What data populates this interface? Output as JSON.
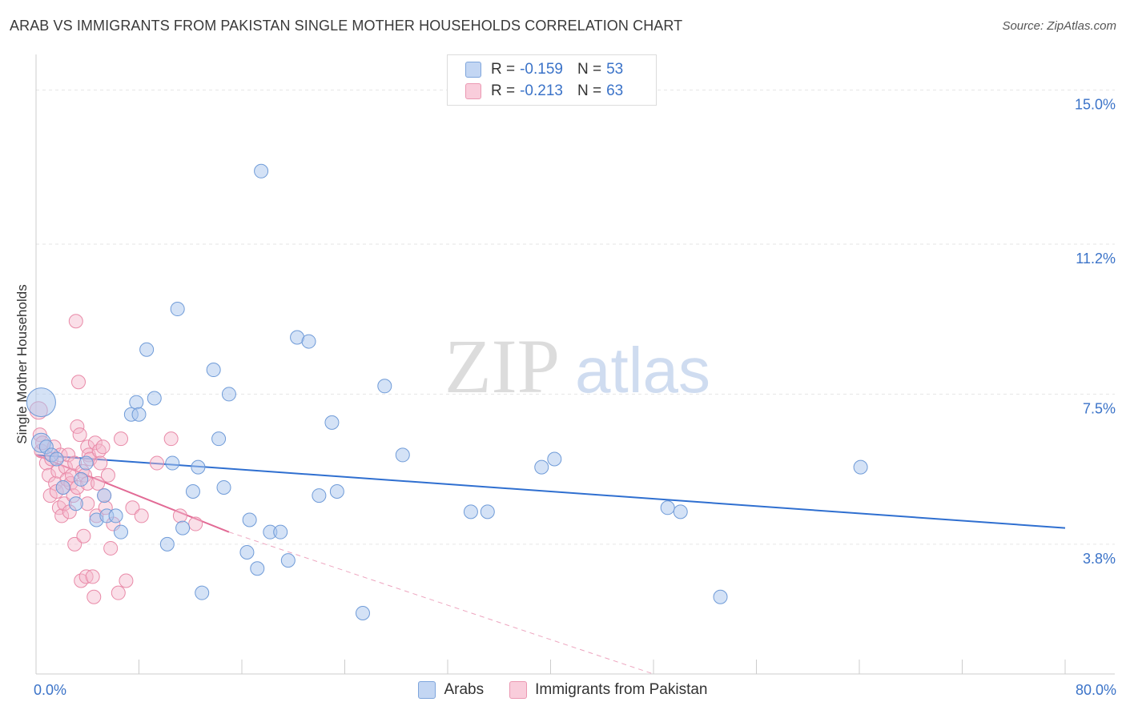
{
  "title": "ARAB VS IMMIGRANTS FROM PAKISTAN SINGLE MOTHER HOUSEHOLDS CORRELATION CHART",
  "source": "Source: ZipAtlas.com",
  "watermark": {
    "zip": "ZIP",
    "atlas": "atlas"
  },
  "legend": {
    "arabs": {
      "r_label": "R =",
      "r_value": "-0.159",
      "n_label": "N =",
      "n_value": "53"
    },
    "pakistan": {
      "r_label": "R =",
      "r_value": "-0.213",
      "n_label": "N =",
      "n_value": "63"
    }
  },
  "colors": {
    "arabs_fill": "#a9c5ee",
    "arabs_stroke": "#6f9bd8",
    "arabs_line": "#2f6fd0",
    "pakistan_fill": "#f5b9cc",
    "pakistan_stroke": "#e98aa8",
    "pakistan_line": "#e26a95",
    "tick_label": "#3b73c8",
    "grid": "#e6e6e6"
  },
  "chart_data": {
    "type": "scatter",
    "title": "ARAB VS IMMIGRANTS FROM PAKISTAN SINGLE MOTHER HOUSEHOLDS CORRELATION CHART",
    "xlabel": "",
    "ylabel": "Single Mother Households",
    "xlim": [
      0,
      80
    ],
    "ylim": [
      0.6,
      15.7
    ],
    "x_tick_labels": [
      "0.0%",
      "80.0%"
    ],
    "y_ticks": [
      3.8,
      7.5,
      11.2,
      15.0
    ],
    "y_tick_labels": [
      "3.8%",
      "7.5%",
      "11.2%",
      "15.0%"
    ],
    "grid": true,
    "legend_position": "top-center",
    "series": [
      {
        "name": "Arabs",
        "points": [
          [
            0.4,
            7.3
          ],
          [
            0.4,
            6.3
          ],
          [
            0.8,
            6.2
          ],
          [
            1.2,
            6.0
          ],
          [
            1.6,
            5.9
          ],
          [
            2.1,
            5.2
          ],
          [
            3.1,
            4.8
          ],
          [
            3.5,
            5.4
          ],
          [
            3.9,
            5.8
          ],
          [
            4.7,
            4.4
          ],
          [
            5.3,
            5.0
          ],
          [
            5.5,
            4.5
          ],
          [
            6.2,
            4.5
          ],
          [
            6.6,
            4.1
          ],
          [
            7.4,
            7.0
          ],
          [
            7.8,
            7.3
          ],
          [
            8.0,
            7.0
          ],
          [
            8.6,
            8.6
          ],
          [
            9.2,
            7.4
          ],
          [
            10.2,
            3.8
          ],
          [
            10.6,
            5.8
          ],
          [
            11.0,
            9.6
          ],
          [
            11.4,
            4.2
          ],
          [
            12.2,
            5.1
          ],
          [
            12.6,
            5.7
          ],
          [
            12.9,
            2.6
          ],
          [
            13.8,
            8.1
          ],
          [
            14.2,
            6.4
          ],
          [
            14.6,
            5.2
          ],
          [
            15.0,
            7.5
          ],
          [
            16.4,
            3.6
          ],
          [
            16.6,
            4.4
          ],
          [
            17.2,
            3.2
          ],
          [
            17.5,
            13.0
          ],
          [
            18.2,
            4.1
          ],
          [
            19.0,
            4.1
          ],
          [
            19.6,
            3.4
          ],
          [
            20.3,
            8.9
          ],
          [
            21.2,
            8.8
          ],
          [
            22.0,
            5.0
          ],
          [
            23.0,
            6.8
          ],
          [
            23.4,
            5.1
          ],
          [
            25.4,
            2.1
          ],
          [
            27.1,
            7.7
          ],
          [
            28.5,
            6.0
          ],
          [
            33.8,
            4.6
          ],
          [
            35.1,
            4.6
          ],
          [
            39.3,
            5.7
          ],
          [
            40.3,
            5.9
          ],
          [
            49.1,
            4.7
          ],
          [
            50.1,
            4.6
          ],
          [
            53.2,
            2.5
          ],
          [
            64.1,
            5.7
          ]
        ]
      },
      {
        "name": "Immigrants from Pakistan",
        "points": [
          [
            0.2,
            7.1
          ],
          [
            0.3,
            6.5
          ],
          [
            0.4,
            6.1
          ],
          [
            0.5,
            6.3
          ],
          [
            0.8,
            5.8
          ],
          [
            1.0,
            5.5
          ],
          [
            1.1,
            5.0
          ],
          [
            1.2,
            5.9
          ],
          [
            1.4,
            6.2
          ],
          [
            1.5,
            5.3
          ],
          [
            1.6,
            5.1
          ],
          [
            1.7,
            5.6
          ],
          [
            1.8,
            4.7
          ],
          [
            1.9,
            6.0
          ],
          [
            2.0,
            4.5
          ],
          [
            2.1,
            5.2
          ],
          [
            2.2,
            4.8
          ],
          [
            2.3,
            5.7
          ],
          [
            2.4,
            5.4
          ],
          [
            2.5,
            6.0
          ],
          [
            2.6,
            4.6
          ],
          [
            2.7,
            5.3
          ],
          [
            2.8,
            5.5
          ],
          [
            2.9,
            5.0
          ],
          [
            3.0,
            3.8
          ],
          [
            3.0,
            5.8
          ],
          [
            3.1,
            9.3
          ],
          [
            3.2,
            5.2
          ],
          [
            3.2,
            6.7
          ],
          [
            3.3,
            7.8
          ],
          [
            3.4,
            6.5
          ],
          [
            3.5,
            2.9
          ],
          [
            3.6,
            5.6
          ],
          [
            3.7,
            4.0
          ],
          [
            3.8,
            5.5
          ],
          [
            3.9,
            3.0
          ],
          [
            4.0,
            5.3
          ],
          [
            4.0,
            6.2
          ],
          [
            4.0,
            4.8
          ],
          [
            4.1,
            6.0
          ],
          [
            4.2,
            5.9
          ],
          [
            4.4,
            3.0
          ],
          [
            4.5,
            2.5
          ],
          [
            4.6,
            6.3
          ],
          [
            4.7,
            4.5
          ],
          [
            4.8,
            5.3
          ],
          [
            4.9,
            6.1
          ],
          [
            5.0,
            5.8
          ],
          [
            5.2,
            6.2
          ],
          [
            5.3,
            5.0
          ],
          [
            5.4,
            4.7
          ],
          [
            5.6,
            5.5
          ],
          [
            5.8,
            3.7
          ],
          [
            6.0,
            4.3
          ],
          [
            6.4,
            2.6
          ],
          [
            6.6,
            6.4
          ],
          [
            7.0,
            2.9
          ],
          [
            7.5,
            4.7
          ],
          [
            8.2,
            4.5
          ],
          [
            9.4,
            5.8
          ],
          [
            10.5,
            6.4
          ],
          [
            11.2,
            4.5
          ],
          [
            12.4,
            4.3
          ]
        ]
      }
    ],
    "trendlines": [
      {
        "series": "Arabs",
        "from": [
          0,
          6.0
        ],
        "to": [
          80,
          4.2
        ]
      },
      {
        "series": "Immigrants from Pakistan",
        "from": [
          0,
          6.0
        ],
        "to": [
          15,
          4.1
        ],
        "dashed_extension_to": [
          48,
          0.6
        ]
      }
    ]
  }
}
